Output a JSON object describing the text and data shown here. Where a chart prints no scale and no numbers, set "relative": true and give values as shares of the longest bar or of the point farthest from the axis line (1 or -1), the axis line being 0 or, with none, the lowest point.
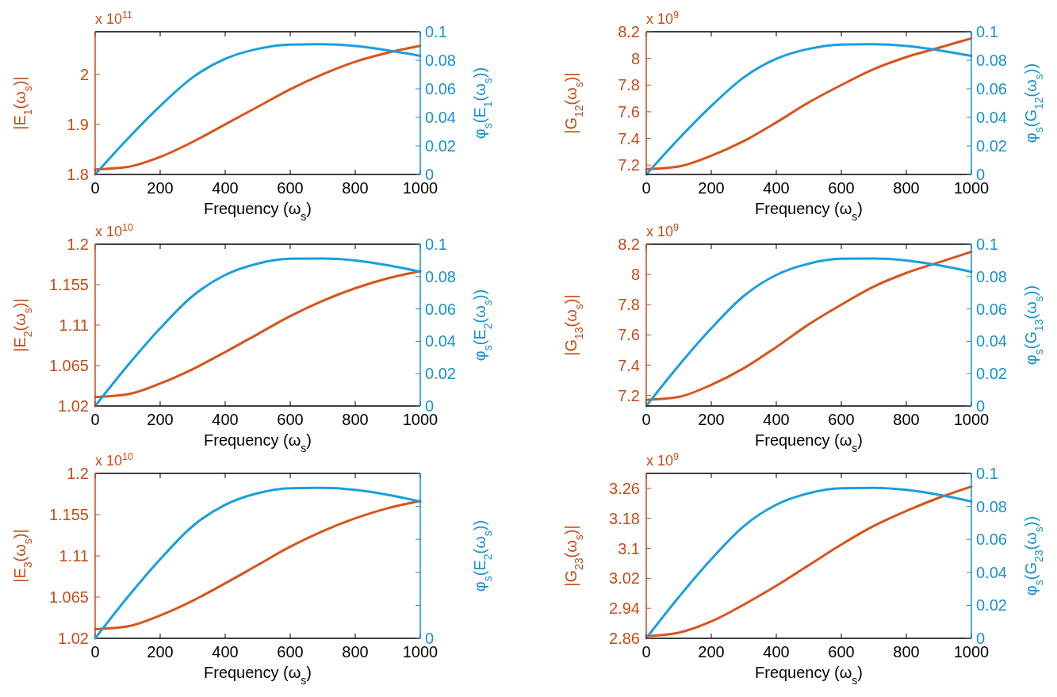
{
  "chart_data": [
    {
      "type": "line",
      "x": [
        0,
        100,
        200,
        300,
        400,
        500,
        600,
        700,
        800,
        900,
        1000
      ],
      "xlim": [
        0,
        1000
      ],
      "xticks": [
        0,
        200,
        400,
        600,
        800,
        1000
      ],
      "xlabel": "Frequency (ω$_{s}$)",
      "ylabel": "|E$_{1}$(ω$_{s}$)|",
      "y2label": "φ$_{s}$(E$_{1}$(ω$_{s}$))",
      "ylim": [
        1.8,
        2.085
      ],
      "yticks": [
        1.8,
        1.9,
        2
      ],
      "y2lim": [
        0,
        0.1
      ],
      "y2ticks": [
        0,
        0.02,
        0.04,
        0.06,
        0.08,
        0.1
      ],
      "annotations": [
        "x 10$^{11}$"
      ],
      "series": [
        {
          "color": "#d9541a",
          "values": [
            1.81,
            1.815,
            1.835,
            1.865,
            1.9,
            1.935,
            1.97,
            2.0,
            2.025,
            2.043,
            2.057
          ]
        },
        {
          "color": "#1a9fe0",
          "axis": "y2",
          "values": [
            0,
            0.025,
            0.048,
            0.068,
            0.081,
            0.088,
            0.091,
            0.0912,
            0.09,
            0.087,
            0.083
          ]
        }
      ]
    },
    {
      "type": "line",
      "x": [
        0,
        100,
        200,
        300,
        400,
        500,
        600,
        700,
        800,
        900,
        1000
      ],
      "xlim": [
        0,
        1000
      ],
      "xticks": [
        0,
        200,
        400,
        600,
        800,
        1000
      ],
      "xlabel": "Frequency (ω$_{s}$)",
      "ylabel": "|G$_{12}$(ω$_{s}$)|",
      "y2label": "φ$_{s}$(G$_{12}$(ω$_{s}$))",
      "ylim": [
        7.13,
        8.2
      ],
      "yticks": [
        7.2,
        7.4,
        7.6,
        7.8,
        8,
        8.2
      ],
      "y2lim": [
        0,
        0.1
      ],
      "y2ticks": [
        0,
        0.02,
        0.04,
        0.06,
        0.08,
        0.1
      ],
      "annotations": [
        "x 10$^{9}$"
      ],
      "series": [
        {
          "color": "#d9541a",
          "values": [
            7.17,
            7.19,
            7.27,
            7.38,
            7.52,
            7.67,
            7.8,
            7.92,
            8.01,
            8.08,
            8.15
          ]
        },
        {
          "color": "#1a9fe0",
          "axis": "y2",
          "values": [
            0,
            0.025,
            0.048,
            0.068,
            0.081,
            0.088,
            0.091,
            0.0912,
            0.09,
            0.087,
            0.083
          ]
        }
      ]
    },
    {
      "type": "line",
      "x": [
        0,
        100,
        200,
        300,
        400,
        500,
        600,
        700,
        800,
        900,
        1000
      ],
      "xlim": [
        0,
        1000
      ],
      "xticks": [
        0,
        200,
        400,
        600,
        800,
        1000
      ],
      "xlabel": "Frequency (ω$_{s}$)",
      "ylabel": "|E$_{2}$(ω$_{s}$)|",
      "y2label": "φ$_{s}$(E$_{2}$(ω$_{s}$))",
      "ylim": [
        1.02,
        1.2
      ],
      "yticks": [
        1.02,
        1.065,
        1.11,
        1.155,
        1.2
      ],
      "y2lim": [
        0,
        0.1
      ],
      "y2ticks": [
        0,
        0.02,
        0.04,
        0.06,
        0.08,
        0.1
      ],
      "annotations": [
        "x 10$^{10}$"
      ],
      "series": [
        {
          "color": "#d9541a",
          "values": [
            1.03,
            1.033,
            1.045,
            1.061,
            1.08,
            1.1,
            1.12,
            1.137,
            1.151,
            1.162,
            1.17
          ]
        },
        {
          "color": "#1a9fe0",
          "axis": "y2",
          "values": [
            0,
            0.025,
            0.048,
            0.068,
            0.081,
            0.088,
            0.091,
            0.0912,
            0.09,
            0.087,
            0.083
          ]
        }
      ]
    },
    {
      "type": "line",
      "x": [
        0,
        100,
        200,
        300,
        400,
        500,
        600,
        700,
        800,
        900,
        1000
      ],
      "xlim": [
        0,
        1000
      ],
      "xticks": [
        0,
        200,
        400,
        600,
        800,
        1000
      ],
      "xlabel": "Frequency (ω$_{s}$)",
      "ylabel": "|G$_{13}$(ω$_{s}$)|",
      "y2label": "φ$_{s}$(G$_{13}$(ω$_{s}$))",
      "ylim": [
        7.13,
        8.2
      ],
      "yticks": [
        7.2,
        7.4,
        7.6,
        7.8,
        8,
        8.2
      ],
      "y2lim": [
        0,
        0.1
      ],
      "y2ticks": [
        0,
        0.02,
        0.04,
        0.06,
        0.08,
        0.1
      ],
      "annotations": [
        "x 10$^{9}$"
      ],
      "series": [
        {
          "color": "#d9541a",
          "values": [
            7.17,
            7.19,
            7.27,
            7.38,
            7.52,
            7.67,
            7.8,
            7.92,
            8.01,
            8.08,
            8.15
          ]
        },
        {
          "color": "#1a9fe0",
          "axis": "y2",
          "values": [
            0,
            0.025,
            0.048,
            0.068,
            0.081,
            0.088,
            0.091,
            0.0912,
            0.09,
            0.087,
            0.083
          ]
        }
      ]
    },
    {
      "type": "line",
      "x": [
        0,
        100,
        200,
        300,
        400,
        500,
        600,
        700,
        800,
        900,
        1000
      ],
      "xlim": [
        0,
        1000
      ],
      "xticks": [
        0,
        200,
        400,
        600,
        800,
        1000
      ],
      "xlabel": "Frequency (ω$_{s}$)",
      "ylabel": "|E$_{3}$(ω$_{s}$)|",
      "ylim": [
        1.02,
        1.2
      ],
      "yticks": [
        1.02,
        1.065,
        1.11,
        1.155,
        1.2
      ],
      "annotations": [
        "x 10$^{10}$"
      ],
      "series": [
        {
          "color": "#d9541a",
          "values": [
            1.03,
            1.033,
            1.045,
            1.061,
            1.08,
            1.1,
            1.12,
            1.137,
            1.151,
            1.162,
            1.17
          ]
        }
      ]
    },
    {
      "type": "line",
      "relative": true,
      "x": [
        0,
        100,
        200,
        300,
        400,
        500,
        600,
        700,
        800,
        900,
        1000
      ],
      "xlim": [
        0,
        1000
      ],
      "ylabel": "φ$_{s}$(E$_{2}$(ω$_{s}$))",
      "annotations": [
        "0"
      ],
      "series": [
        {
          "color": "#1a9fe0",
          "values": [
            0,
            0.274,
            0.526,
            0.746,
            0.888,
            0.965,
            0.998,
            1,
            0.987,
            0.954,
            0.91
          ]
        }
      ]
    },
    {
      "type": "line",
      "x": [
        0,
        100,
        200,
        300,
        400,
        500,
        600,
        700,
        800,
        900,
        1000
      ],
      "xlim": [
        0,
        1000
      ],
      "xticks": [
        0,
        200,
        400,
        600,
        800,
        1000
      ],
      "xlabel": "Frequency (ω$_{s}$)",
      "ylabel": "|G$_{23}$(ω$_{s}$)|",
      "y2label": "φ$_{s}$(G$_{23}$(ω$_{s}$))",
      "ylim": [
        2.86,
        3.3
      ],
      "yticks": [
        2.86,
        2.94,
        3.02,
        3.1,
        3.18,
        3.26
      ],
      "y2lim": [
        0,
        0.1
      ],
      "y2ticks": [
        0,
        0.02,
        0.04,
        0.06,
        0.08,
        0.1
      ],
      "annotations": [
        "x 10$^{9}$"
      ],
      "series": [
        {
          "color": "#d9541a",
          "values": [
            2.866,
            2.875,
            2.905,
            2.95,
            3.0,
            3.055,
            3.11,
            3.16,
            3.2,
            3.235,
            3.265
          ]
        },
        {
          "color": "#1a9fe0",
          "axis": "y2",
          "values": [
            0,
            0.025,
            0.048,
            0.068,
            0.081,
            0.088,
            0.091,
            0.0912,
            0.09,
            0.087,
            0.083
          ]
        }
      ]
    }
  ]
}
